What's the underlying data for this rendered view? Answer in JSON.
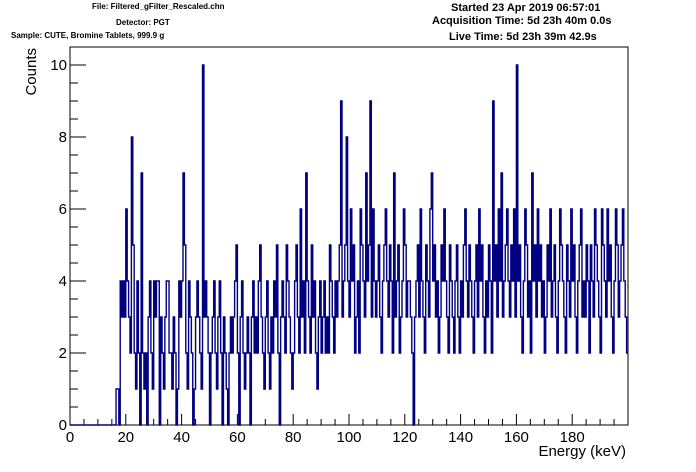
{
  "header": {
    "file": "File: Filtered_gFilter_Rescaled.chn",
    "detector": "Detector: PGT",
    "sample": "Sample: CUTE, Bromine Tablets, 999.9 g",
    "started": "Started 23 Apr 2019 06:57:01",
    "acquisition_time": "Acquisition Time: 5d 23h 40m 0.0s",
    "live_time": "Live Time: 5d 23h 39m 42.9s"
  },
  "chart_data": {
    "type": "histogram",
    "xlabel": "Energy (keV)",
    "ylabel": "Counts",
    "xlim": [
      0,
      200
    ],
    "ylim": [
      0,
      10.5
    ],
    "x_ticks": [
      0,
      20,
      40,
      60,
      80,
      100,
      120,
      140,
      160,
      180
    ],
    "y_ticks": [
      0,
      2,
      4,
      6,
      8,
      10
    ],
    "bin_width": 0.5,
    "x_start": 16.5,
    "line_color": "#000080",
    "grid": false,
    "counts": [
      1,
      1,
      0,
      4,
      3,
      4,
      3,
      6,
      4,
      3,
      2,
      8,
      5,
      2,
      1,
      4,
      2,
      0,
      7,
      2,
      1,
      2,
      0,
      3,
      4,
      2,
      1,
      4,
      3,
      4,
      4,
      0,
      3,
      2,
      1,
      3,
      4,
      4,
      2,
      2,
      1,
      3,
      2,
      0,
      1,
      4,
      3,
      4,
      7,
      5,
      2,
      1,
      4,
      3,
      2,
      0,
      1,
      3,
      4,
      3,
      2,
      1,
      10,
      3,
      4,
      3,
      2,
      0,
      2,
      3,
      4,
      2,
      1,
      3,
      4,
      2,
      0,
      3,
      2,
      1,
      0,
      2,
      3,
      2,
      3,
      4,
      5,
      2,
      0,
      3,
      4,
      2,
      1,
      2,
      3,
      2,
      0,
      3,
      4,
      2,
      3,
      2,
      4,
      5,
      3,
      2,
      1,
      3,
      4,
      2,
      1,
      3,
      2,
      4,
      3,
      5,
      2,
      0,
      3,
      4,
      3,
      2,
      5,
      4,
      3,
      2,
      1,
      2,
      4,
      5,
      3,
      2,
      6,
      3,
      4,
      2,
      7,
      4,
      3,
      2,
      5,
      3,
      4,
      2,
      1,
      3,
      4,
      2,
      3,
      4,
      2,
      3,
      2,
      5,
      4,
      3,
      2,
      4,
      3,
      4,
      5,
      9,
      3,
      4,
      5,
      8,
      4,
      3,
      6,
      4,
      5,
      2,
      3,
      4,
      2,
      6,
      5,
      4,
      3,
      7,
      4,
      5,
      9,
      3,
      6,
      4,
      3,
      4,
      5,
      3,
      2,
      4,
      5,
      6,
      4,
      3,
      5,
      4,
      2,
      7,
      3,
      4,
      5,
      2,
      3,
      4,
      6,
      5,
      3,
      4,
      4,
      3,
      2,
      0,
      3,
      4,
      5,
      3,
      6,
      4,
      3,
      2,
      5,
      4,
      3,
      6,
      7,
      4,
      5,
      3,
      4,
      2,
      3,
      5,
      4,
      6,
      4,
      3,
      2,
      5,
      4,
      3,
      2,
      4,
      5,
      3,
      2,
      4,
      3,
      5,
      6,
      4,
      3,
      5,
      4,
      3,
      2,
      4,
      5,
      3,
      6,
      4,
      5,
      3,
      2,
      4,
      3,
      5,
      4,
      2,
      9,
      4,
      5,
      3,
      6,
      4,
      7,
      3,
      4,
      5,
      6,
      4,
      3,
      5,
      4,
      6,
      3,
      10,
      4,
      5,
      3,
      2,
      4,
      6,
      5,
      3,
      4,
      2,
      7,
      4,
      5,
      3,
      6,
      4,
      5,
      3,
      4,
      2,
      3,
      5,
      4,
      6,
      3,
      4,
      5,
      3,
      2,
      4,
      6,
      5,
      4,
      3,
      2,
      5,
      4,
      3,
      6,
      4,
      5,
      3,
      2,
      4,
      5,
      6,
      3,
      4,
      3,
      5,
      4,
      2,
      5,
      4,
      3,
      6,
      5,
      4,
      3,
      2,
      6,
      5,
      4,
      3,
      6,
      4,
      5,
      3,
      2,
      4,
      6,
      5,
      3,
      4,
      5,
      6,
      4,
      3,
      2,
      5,
      3,
      6,
      4,
      5,
      3
    ]
  }
}
